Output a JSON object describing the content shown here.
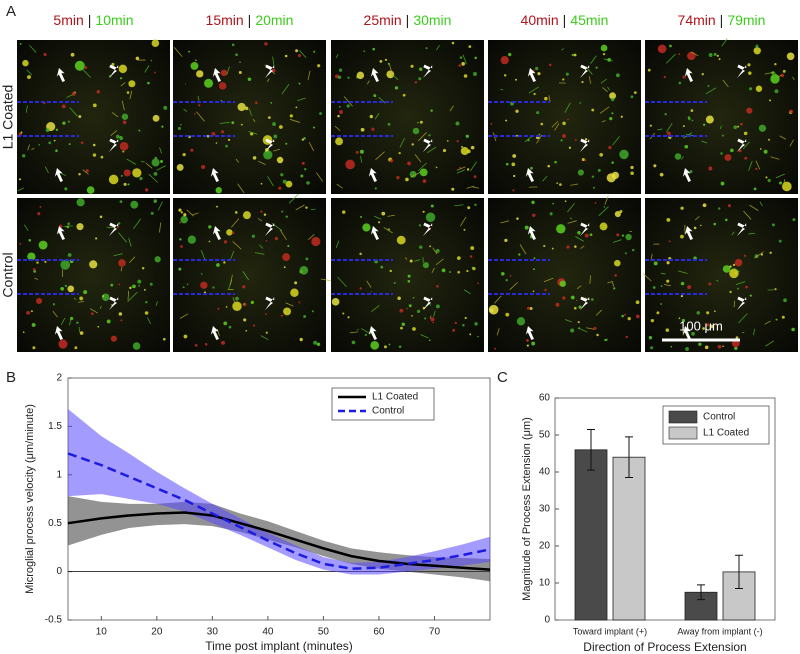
{
  "panels": {
    "a": "A",
    "b": "B",
    "c": "C"
  },
  "images": {
    "separator": "|",
    "times": [
      [
        "5min",
        "10min"
      ],
      [
        "15min",
        "20min"
      ],
      [
        "25min",
        "30min"
      ],
      [
        "40min",
        "45min"
      ],
      [
        "74min",
        "79min"
      ]
    ],
    "rows": [
      "L1 Coated",
      "Control"
    ],
    "scale_bar": "100 μm"
  },
  "chart_data": [
    {
      "type": "line",
      "xlabel": "Time post implant (minutes)",
      "ylabel": "Microglial process velocity (μm/minute)",
      "x": [
        4,
        10,
        15,
        20,
        25,
        30,
        35,
        40,
        45,
        50,
        55,
        60,
        65,
        70,
        75,
        80
      ],
      "xlim": [
        4,
        80
      ],
      "xticks": [
        10,
        20,
        30,
        40,
        50,
        60,
        70
      ],
      "ylim": [
        -0.5,
        2
      ],
      "yticks": [
        -0.5,
        0,
        0.5,
        1,
        1.5,
        2
      ],
      "zero_line": true,
      "legend": "upper-right",
      "series": [
        {
          "name": "L1 Coated",
          "color": "#000000",
          "band_color": "#3a3a3a",
          "linestyle": "solid",
          "values": [
            0.5,
            0.55,
            0.58,
            0.6,
            0.61,
            0.58,
            0.5,
            0.42,
            0.33,
            0.24,
            0.16,
            0.11,
            0.08,
            0.06,
            0.04,
            0.02
          ],
          "lower": [
            0.27,
            0.38,
            0.45,
            0.48,
            0.49,
            0.47,
            0.41,
            0.33,
            0.25,
            0.16,
            0.08,
            0.03,
            0,
            -0.03,
            -0.06,
            -0.1
          ],
          "upper": [
            0.78,
            0.72,
            0.7,
            0.7,
            0.72,
            0.7,
            0.6,
            0.52,
            0.42,
            0.32,
            0.24,
            0.2,
            0.17,
            0.15,
            0.14,
            0.13
          ]
        },
        {
          "name": "Control",
          "color": "#1c1ce0",
          "band_color": "#5a48ff",
          "linestyle": "dashed",
          "values": [
            1.22,
            1.1,
            0.98,
            0.86,
            0.74,
            0.6,
            0.46,
            0.32,
            0.19,
            0.08,
            0.03,
            0.04,
            0.08,
            0.12,
            0.17,
            0.23
          ],
          "lower": [
            0.78,
            0.8,
            0.75,
            0.7,
            0.62,
            0.5,
            0.38,
            0.25,
            0.12,
            0.02,
            -0.03,
            -0.03,
            0,
            0.03,
            0.06,
            0.1
          ],
          "upper": [
            1.68,
            1.4,
            1.22,
            1.03,
            0.86,
            0.7,
            0.55,
            0.4,
            0.27,
            0.15,
            0.09,
            0.1,
            0.15,
            0.21,
            0.28,
            0.36
          ]
        }
      ]
    },
    {
      "type": "bar",
      "xlabel": "Direction of Process Extension",
      "ylabel": "Magnitude of Process Extension (μm)",
      "categories": [
        "Toward implant (+)",
        "Away from implant (-)"
      ],
      "ylim": [
        0,
        60
      ],
      "yticks": [
        0,
        10,
        20,
        30,
        40,
        50,
        60
      ],
      "legend": "upper-right",
      "series": [
        {
          "name": "Control",
          "color": "#4a4a4a",
          "values": [
            46,
            7.5
          ],
          "errors": [
            5.5,
            2
          ]
        },
        {
          "name": "L1 Coated",
          "color": "#c8c8c8",
          "values": [
            44,
            13
          ],
          "errors": [
            5.5,
            4.5
          ]
        }
      ]
    }
  ]
}
